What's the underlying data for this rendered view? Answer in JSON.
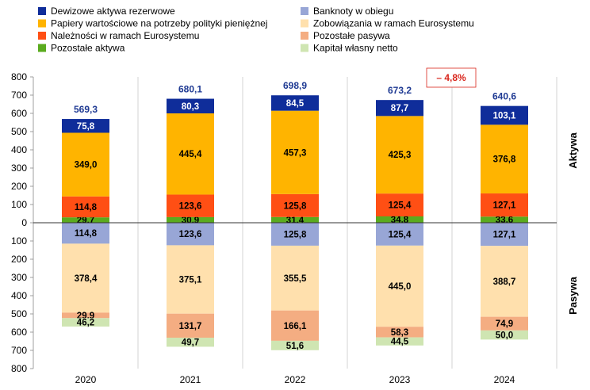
{
  "chart_data": {
    "type": "bar",
    "categories": [
      "2020",
      "2021",
      "2022",
      "2023",
      "2024"
    ],
    "ylim": [
      -800,
      800
    ],
    "yticks": [
      "800",
      "700",
      "600",
      "500",
      "400",
      "300",
      "200",
      "100",
      "0",
      "100",
      "200",
      "300",
      "400",
      "500",
      "600",
      "700",
      "800"
    ],
    "grid": "vertical separators",
    "legend": "top",
    "side_labels": {
      "assets": "Aktywa",
      "liabilities": "Pasywa"
    },
    "change_note": "– 4,8%",
    "assets_totals": [
      "569,3",
      "680,1",
      "698,9",
      "673,2",
      "640,6"
    ],
    "assets": [
      {
        "name": "Pozostałe aktywa",
        "color": "#5aab1e",
        "values": [
          29.7,
          30.9,
          31.4,
          34.8,
          33.6
        ],
        "labels": [
          "29,7",
          "30,9",
          "31,4",
          "34,8",
          "33,6"
        ]
      },
      {
        "name": "Należności w ramach Eurosystemu",
        "color": "#ff4f14",
        "values": [
          114.8,
          123.6,
          125.8,
          125.4,
          127.1
        ],
        "labels": [
          "114,8",
          "123,6",
          "125,8",
          "125,4",
          "127,1"
        ]
      },
      {
        "name": "Papiery wartościowe na potrzeby polityki pieniężnej",
        "color": "#ffb400",
        "values": [
          349.0,
          445.4,
          457.3,
          425.3,
          376.8
        ],
        "labels": [
          "349,0",
          "445,4",
          "457,3",
          "425,3",
          "376,8"
        ]
      },
      {
        "name": "Dewizowe aktywa rezerwowe",
        "color": "#0f2d9a",
        "values": [
          75.8,
          80.3,
          84.5,
          87.7,
          103.1
        ],
        "labels": [
          "75,8",
          "80,3",
          "84,5",
          "87,7",
          "103,1"
        ]
      }
    ],
    "liabilities": [
      {
        "name": "Banknoty w obiegu",
        "color": "#98a6d6",
        "values": [
          114.8,
          123.6,
          125.8,
          125.4,
          127.1
        ],
        "labels": [
          "114,8",
          "123,6",
          "125,8",
          "125,4",
          "127,1"
        ]
      },
      {
        "name": "Zobowiązania w ramach Eurosystemu",
        "color": "#ffe0ad",
        "values": [
          378.4,
          375.1,
          355.5,
          445.0,
          388.7
        ],
        "labels": [
          "378,4",
          "375,1",
          "355,5",
          "445,0",
          "388,7"
        ]
      },
      {
        "name": "Pozostałe pasywa",
        "color": "#f4ad82",
        "values": [
          29.9,
          131.7,
          166.1,
          58.3,
          74.9
        ],
        "labels": [
          "29,9",
          "131,7",
          "166,1",
          "58,3",
          "74,9"
        ]
      },
      {
        "name": "Kapitał własny netto",
        "color": "#cfe5b2",
        "values": [
          46.2,
          49.7,
          51.6,
          44.5,
          50.0
        ],
        "labels": [
          "46,2",
          "49,7",
          "51,6",
          "44,5",
          "50,0"
        ]
      }
    ],
    "legend_items": [
      {
        "name": "Dewizowe aktywa rezerwowe",
        "color": "#0f2d9a"
      },
      {
        "name": "Banknoty w obiegu",
        "color": "#98a6d6"
      },
      {
        "name": "Papiery wartościowe na potrzeby polityki pieniężnej",
        "color": "#ffb400"
      },
      {
        "name": "Zobowiązania w ramach Eurosystemu",
        "color": "#ffe0ad"
      },
      {
        "name": "Należności w ramach Eurosystemu",
        "color": "#ff4f14"
      },
      {
        "name": "Pozostałe pasywa",
        "color": "#f4ad82"
      },
      {
        "name": "Pozostałe aktywa",
        "color": "#5aab1e"
      },
      {
        "name": "Kapitał własny netto",
        "color": "#cfe5b2"
      }
    ]
  }
}
